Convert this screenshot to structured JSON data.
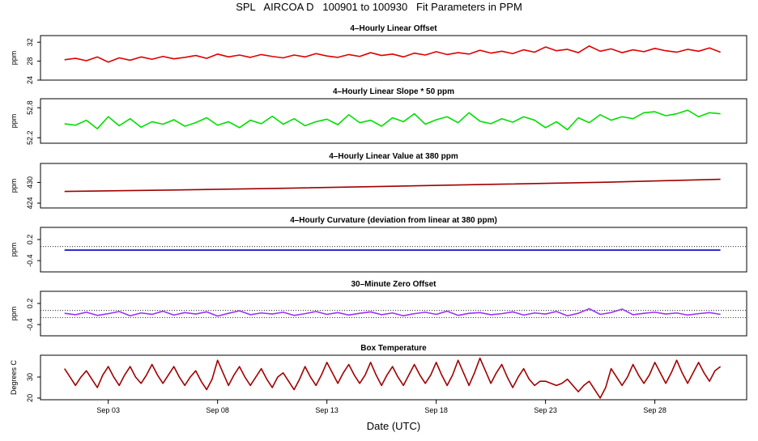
{
  "title": "SPL   AIRCOA D   100901 to 100930   Fit Parameters in PPM",
  "chart_data": [
    {
      "type": "line",
      "title": "4–Hourly Linear Offset",
      "ylabel": "ppm",
      "color": "#e00000",
      "xlim": [
        -0.1,
        32.2
      ],
      "ylim": [
        24,
        33.4
      ],
      "yticks": [
        24,
        28,
        32
      ],
      "x": [
        1,
        1.5,
        2,
        2.5,
        3,
        3.5,
        4,
        4.5,
        5,
        5.5,
        6,
        6.5,
        7,
        7.5,
        8,
        8.5,
        9,
        9.5,
        10,
        10.5,
        11,
        11.5,
        12,
        12.5,
        13,
        13.5,
        14,
        14.5,
        15,
        15.5,
        16,
        16.5,
        17,
        17.5,
        18,
        18.5,
        19,
        19.5,
        20,
        20.5,
        21,
        21.5,
        22,
        22.5,
        23,
        23.5,
        24,
        24.5,
        25,
        25.5,
        26,
        26.5,
        27,
        27.5,
        28,
        28.5,
        29,
        29.5,
        30,
        30.5,
        31
      ],
      "values": [
        28.3,
        28.6,
        28.1,
        28.9,
        27.8,
        28.7,
        28.2,
        28.9,
        28.4,
        29.0,
        28.5,
        28.8,
        29.2,
        28.6,
        29.5,
        28.9,
        29.3,
        28.8,
        29.4,
        29.0,
        28.7,
        29.3,
        28.9,
        29.6,
        29.1,
        28.8,
        29.4,
        29.0,
        29.8,
        29.2,
        29.5,
        28.9,
        29.7,
        29.3,
        30.0,
        29.4,
        29.8,
        29.5,
        30.3,
        29.7,
        30.1,
        29.6,
        30.4,
        29.9,
        31.0,
        30.2,
        30.5,
        29.8,
        31.2,
        30.1,
        30.6,
        29.8,
        30.4,
        30.0,
        30.7,
        30.2,
        29.9,
        30.5,
        30.1,
        30.8,
        29.9
      ]
    },
    {
      "type": "line",
      "title": "4–Hourly Linear Slope * 50 ppm",
      "ylabel": "ppm",
      "color": "#00e000",
      "xlim": [
        -0.1,
        32.2
      ],
      "ylim": [
        52.09,
        52.98
      ],
      "yticks": [
        52.2,
        52.8
      ],
      "x": [
        1,
        1.5,
        2,
        2.5,
        3,
        3.5,
        4,
        4.5,
        5,
        5.5,
        6,
        6.5,
        7,
        7.5,
        8,
        8.5,
        9,
        9.5,
        10,
        10.5,
        11,
        11.5,
        12,
        12.5,
        13,
        13.5,
        14,
        14.5,
        15,
        15.5,
        16,
        16.5,
        17,
        17.5,
        18,
        18.5,
        19,
        19.5,
        20,
        20.5,
        21,
        21.5,
        22,
        22.5,
        23,
        23.5,
        24,
        24.5,
        25,
        25.5,
        26,
        26.5,
        27,
        27.5,
        28,
        28.5,
        29,
        29.5,
        30,
        30.5,
        31
      ],
      "values": [
        52.48,
        52.45,
        52.55,
        52.38,
        52.62,
        52.44,
        52.58,
        52.41,
        52.52,
        52.47,
        52.56,
        52.43,
        52.5,
        52.6,
        52.45,
        52.52,
        52.4,
        52.55,
        52.48,
        52.63,
        52.47,
        52.58,
        52.44,
        52.52,
        52.57,
        52.46,
        52.66,
        52.5,
        52.55,
        52.43,
        52.6,
        52.52,
        52.68,
        52.47,
        52.56,
        52.62,
        52.5,
        52.7,
        52.53,
        52.48,
        52.58,
        52.51,
        52.62,
        52.55,
        52.4,
        52.52,
        52.36,
        52.6,
        52.5,
        52.66,
        52.55,
        52.62,
        52.58,
        52.7,
        52.72,
        52.64,
        52.68,
        52.75,
        52.62,
        52.7,
        52.68
      ]
    },
    {
      "type": "line",
      "title": "4–Hourly Linear Value at 380 ppm",
      "ylabel": "ppm",
      "color": "#a00000",
      "xlim": [
        -0.1,
        32.2
      ],
      "ylim": [
        422.6,
        435.5
      ],
      "yticks": [
        424,
        430
      ],
      "x": [
        1,
        6,
        11,
        16,
        21,
        26,
        31
      ],
      "values": [
        427.4,
        427.8,
        428.3,
        428.9,
        429.5,
        430.1,
        430.9
      ]
    },
    {
      "type": "line",
      "title": "4–Hourly Curvature (deviation from linear at 380 ppm)",
      "ylabel": "ppm",
      "color": "#0000c0",
      "xlim": [
        -0.1,
        32.2
      ],
      "ylim": [
        -0.72,
        0.545
      ],
      "yticks": [
        0.2,
        -0.4
      ],
      "hlines": [
        0
      ],
      "x": [
        1,
        31
      ],
      "values": [
        -0.1,
        -0.1
      ]
    },
    {
      "type": "line",
      "title": "30–Minute Zero Offset",
      "ylabel": "ppm",
      "color": "#9b30ff",
      "xlim": [
        -0.1,
        32.2
      ],
      "ylim": [
        -0.72,
        0.545
      ],
      "yticks": [
        0.2,
        -0.4
      ],
      "hlines": [
        0,
        -0.2
      ],
      "x": [
        1,
        1.5,
        2,
        2.5,
        3,
        3.5,
        4,
        4.5,
        5,
        5.5,
        6,
        6.5,
        7,
        7.5,
        8,
        8.5,
        9,
        9.5,
        10,
        10.5,
        11,
        11.5,
        12,
        12.5,
        13,
        13.5,
        14,
        14.5,
        15,
        15.5,
        16,
        16.5,
        17,
        17.5,
        18,
        18.5,
        19,
        19.5,
        20,
        20.5,
        21,
        21.5,
        22,
        22.5,
        23,
        23.5,
        24,
        24.5,
        25,
        25.5,
        26,
        26.5,
        27,
        27.5,
        28,
        28.5,
        29,
        29.5,
        30,
        30.5,
        31
      ],
      "values": [
        -0.08,
        -0.12,
        -0.05,
        -0.14,
        -0.09,
        -0.03,
        -0.15,
        -0.07,
        -0.11,
        -0.02,
        -0.13,
        -0.06,
        -0.1,
        -0.04,
        -0.16,
        -0.08,
        -0.01,
        -0.12,
        -0.07,
        -0.1,
        -0.05,
        -0.14,
        -0.09,
        -0.03,
        -0.11,
        -0.06,
        -0.13,
        -0.08,
        -0.04,
        -0.12,
        -0.07,
        -0.15,
        -0.09,
        -0.05,
        -0.11,
        -0.02,
        -0.14,
        -0.08,
        -0.06,
        -0.12,
        -0.09,
        -0.04,
        -0.13,
        -0.07,
        -0.1,
        -0.03,
        -0.15,
        -0.08,
        0.05,
        -0.11,
        -0.06,
        0.04,
        -0.12,
        -0.08,
        -0.05,
        -0.1,
        -0.07,
        -0.13,
        -0.09,
        -0.06,
        -0.11
      ]
    },
    {
      "type": "line",
      "title": "Box Temperature",
      "ylabel": "Degrees C",
      "color": "#a00000",
      "xlim": [
        -0.1,
        32.2
      ],
      "ylim": [
        19.2,
        40.4
      ],
      "yticks": [
        20,
        30
      ],
      "xlabel": "Date (UTC)",
      "xticks": [
        {
          "value": 3,
          "label": "Sep 03"
        },
        {
          "value": 8,
          "label": "Sep 08"
        },
        {
          "value": 13,
          "label": "Sep 13"
        },
        {
          "value": 18,
          "label": "Sep 18"
        },
        {
          "value": 23,
          "label": "Sep 23"
        },
        {
          "value": 28,
          "label": "Sep 28"
        }
      ],
      "x": [
        1,
        1.25,
        1.5,
        1.75,
        2,
        2.25,
        2.5,
        2.75,
        3,
        3.25,
        3.5,
        3.75,
        4,
        4.25,
        4.5,
        4.75,
        5,
        5.25,
        5.5,
        5.75,
        6,
        6.25,
        6.5,
        6.75,
        7,
        7.25,
        7.5,
        7.75,
        8,
        8.25,
        8.5,
        8.75,
        9,
        9.25,
        9.5,
        9.75,
        10,
        10.25,
        10.5,
        10.75,
        11,
        11.25,
        11.5,
        11.75,
        12,
        12.25,
        12.5,
        12.75,
        13,
        13.25,
        13.5,
        13.75,
        14,
        14.25,
        14.5,
        14.75,
        15,
        15.25,
        15.5,
        15.75,
        16,
        16.25,
        16.5,
        16.75,
        17,
        17.25,
        17.5,
        17.75,
        18,
        18.25,
        18.5,
        18.75,
        19,
        19.25,
        19.5,
        19.75,
        20,
        20.25,
        20.5,
        20.75,
        21,
        21.25,
        21.5,
        21.75,
        22,
        22.25,
        22.5,
        22.75,
        23,
        23.25,
        23.5,
        23.75,
        24,
        24.25,
        24.5,
        24.75,
        25,
        25.25,
        25.5,
        25.75,
        26,
        26.25,
        26.5,
        26.75,
        27,
        27.25,
        27.5,
        27.75,
        28,
        28.25,
        28.5,
        28.75,
        29,
        29.25,
        29.5,
        29.75,
        30,
        30.25,
        30.5,
        30.75,
        31
      ],
      "values": [
        34,
        30,
        26,
        30,
        33,
        29,
        25,
        31,
        35,
        30,
        26,
        31,
        35,
        30,
        27,
        31,
        36,
        31,
        27,
        31,
        35,
        30,
        26,
        30,
        33,
        28,
        24,
        29,
        38,
        32,
        26,
        31,
        35,
        30,
        26,
        30,
        34,
        29,
        25,
        30,
        32,
        28,
        24,
        29,
        35,
        30,
        26,
        31,
        37,
        32,
        27,
        32,
        36,
        31,
        27,
        31,
        37,
        31,
        26,
        31,
        35,
        30,
        26,
        31,
        36,
        31,
        27,
        31,
        37,
        31,
        26,
        31,
        38,
        32,
        26,
        32,
        39,
        33,
        27,
        32,
        36,
        30,
        25,
        30,
        34,
        29,
        26,
        28,
        28,
        27,
        26,
        27,
        29,
        26,
        23,
        26,
        28,
        24,
        20,
        25,
        34,
        30,
        26,
        30,
        36,
        31,
        27,
        31,
        37,
        32,
        27,
        32,
        38,
        32,
        27,
        32,
        37,
        32,
        28,
        33,
        35
      ]
    }
  ]
}
